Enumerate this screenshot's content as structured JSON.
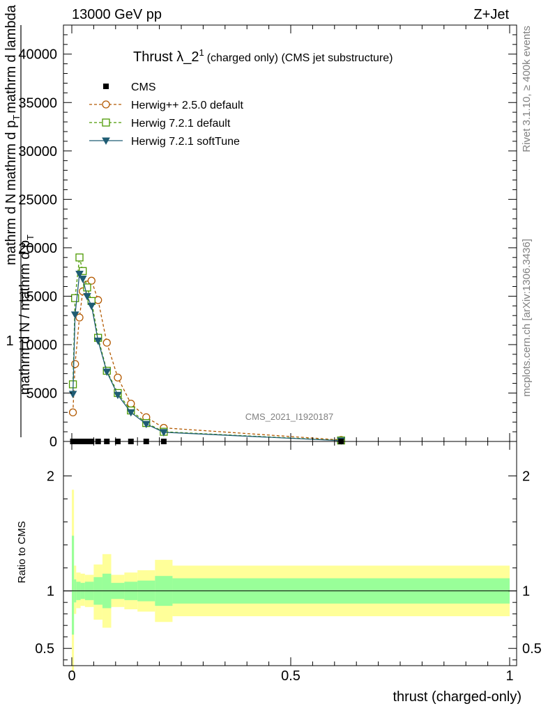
{
  "header": {
    "energy_label": "13000 GeV pp",
    "process_label": "Z+Jet"
  },
  "side_text": {
    "rivet": "Rivet 3.1.10, ≥ 400k events",
    "mcplots": "mcplots.cern.ch [arXiv:1306.3436]"
  },
  "chart_data": [
    {
      "type": "line",
      "panel": "main",
      "title_main": "Thrust λ_2",
      "title_sup": "1",
      "title_rest": "(charged only) (CMS jet substructure)",
      "watermark": "CMS_2021_I1920187",
      "ylabel_numerator_1": "mathrm d",
      "ylabel_numerator_N": "N",
      "ylabel_numerator_2": "mathrm d p",
      "ylabel_numerator_T": "T",
      "ylabel_numerator_3": "mathrm d lambda",
      "ylabel_one": "1",
      "ylabel_denominator": "mathrm d N / mathrm d p",
      "ylabel_denominator_T": "T",
      "xlim": [
        0,
        1
      ],
      "ylim": [
        0,
        43000
      ],
      "y_ticks": [
        {
          "value": 0,
          "label": "0"
        },
        {
          "value": 5000,
          "label": "5000"
        },
        {
          "value": 10000,
          "label": "10000"
        },
        {
          "value": 15000,
          "label": "15000"
        },
        {
          "value": 20000,
          "label": "20000"
        },
        {
          "value": 25000,
          "label": "25000"
        },
        {
          "value": 30000,
          "label": "30000"
        },
        {
          "value": 35000,
          "label": "35000"
        },
        {
          "value": 40000,
          "label": "40000"
        }
      ],
      "legend": [
        {
          "name": "CMS",
          "color": "#000000",
          "marker": "square-filled",
          "line": "none"
        },
        {
          "name": "Herwig++ 2.5.0 default",
          "color": "#b35900",
          "marker": "circle-open",
          "line": "dashed"
        },
        {
          "name": "Herwig 7.2.1 default",
          "color": "#4c9900",
          "marker": "square-open",
          "line": "dashed"
        },
        {
          "name": "Herwig 7.2.1 softTune",
          "color": "#1f5c73",
          "marker": "triangle-down-filled",
          "line": "solid"
        }
      ],
      "series": [
        {
          "name": "CMS",
          "x": [
            0.0025,
            0.0075,
            0.0125,
            0.0175,
            0.025,
            0.035,
            0.045,
            0.06,
            0.08,
            0.105,
            0.135,
            0.17,
            0.21,
            0.615
          ],
          "y": [
            0,
            0,
            0,
            0,
            0,
            0,
            0,
            0,
            0,
            0,
            0,
            0,
            0,
            0
          ]
        },
        {
          "name": "Herwig++ 2.5.0 default",
          "x": [
            0.0025,
            0.0075,
            0.0175,
            0.025,
            0.035,
            0.045,
            0.06,
            0.08,
            0.105,
            0.135,
            0.17,
            0.21,
            0.615
          ],
          "y": [
            3000,
            8000,
            12800,
            15500,
            16200,
            16600,
            14600,
            10200,
            6600,
            3900,
            2500,
            1400,
            150
          ]
        },
        {
          "name": "Herwig 7.2.1 default",
          "x": [
            0.0025,
            0.0075,
            0.0175,
            0.025,
            0.035,
            0.045,
            0.06,
            0.08,
            0.105,
            0.135,
            0.17,
            0.21,
            0.615
          ],
          "y": [
            5900,
            14800,
            19000,
            17600,
            15900,
            14500,
            10700,
            7300,
            5000,
            3200,
            1900,
            1000,
            100
          ]
        },
        {
          "name": "Herwig 7.2.1 softTune",
          "x": [
            0.0025,
            0.0075,
            0.0175,
            0.025,
            0.035,
            0.045,
            0.06,
            0.08,
            0.105,
            0.135,
            0.17,
            0.21,
            0.615
          ],
          "y": [
            4900,
            13100,
            17300,
            16800,
            15000,
            14000,
            10400,
            7200,
            4800,
            3000,
            1800,
            950,
            80
          ]
        }
      ]
    },
    {
      "type": "area",
      "panel": "ratio",
      "ylabel": "Ratio to CMS",
      "xlabel": "thrust (charged-only)",
      "xlim": [
        0,
        1
      ],
      "ylim": [
        0.35,
        2.3
      ],
      "y_ticks": [
        {
          "value": 0.5,
          "label": "0.5"
        },
        {
          "value": 1,
          "label": "1"
        },
        {
          "value": 2,
          "label": "2"
        }
      ],
      "x_ticks": [
        {
          "value": 0,
          "label": "0"
        },
        {
          "value": 0.5,
          "label": "0.5"
        },
        {
          "value": 1,
          "label": "1"
        }
      ],
      "reference_line": 1,
      "bins": [
        {
          "x0": 0.0,
          "x1": 0.005,
          "outer_lo": 0.3,
          "outer_hi": 1.88,
          "inner_lo": 0.62,
          "inner_hi": 1.48
        },
        {
          "x0": 0.005,
          "x1": 0.01,
          "outer_lo": 0.8,
          "outer_hi": 1.22,
          "inner_lo": 0.9,
          "inner_hi": 1.1
        },
        {
          "x0": 0.01,
          "x1": 0.02,
          "outer_lo": 0.85,
          "outer_hi": 1.16,
          "inner_lo": 0.92,
          "inner_hi": 1.08
        },
        {
          "x0": 0.02,
          "x1": 0.03,
          "outer_lo": 0.87,
          "outer_hi": 1.15,
          "inner_lo": 0.93,
          "inner_hi": 1.07
        },
        {
          "x0": 0.03,
          "x1": 0.05,
          "outer_lo": 0.86,
          "outer_hi": 1.14,
          "inner_lo": 0.92,
          "inner_hi": 1.08
        },
        {
          "x0": 0.05,
          "x1": 0.07,
          "outer_lo": 0.75,
          "outer_hi": 1.23,
          "inner_lo": 0.88,
          "inner_hi": 1.12
        },
        {
          "x0": 0.07,
          "x1": 0.09,
          "outer_lo": 0.68,
          "outer_hi": 1.32,
          "inner_lo": 0.85,
          "inner_hi": 1.15
        },
        {
          "x0": 0.09,
          "x1": 0.12,
          "outer_lo": 0.86,
          "outer_hi": 1.14,
          "inner_lo": 0.93,
          "inner_hi": 1.07
        },
        {
          "x0": 0.12,
          "x1": 0.15,
          "outer_lo": 0.84,
          "outer_hi": 1.16,
          "inner_lo": 0.92,
          "inner_hi": 1.08
        },
        {
          "x0": 0.15,
          "x1": 0.19,
          "outer_lo": 0.82,
          "outer_hi": 1.18,
          "inner_lo": 0.91,
          "inner_hi": 1.09
        },
        {
          "x0": 0.19,
          "x1": 0.23,
          "outer_lo": 0.73,
          "outer_hi": 1.27,
          "inner_lo": 0.87,
          "inner_hi": 1.13
        },
        {
          "x0": 0.23,
          "x1": 1.0,
          "outer_lo": 0.78,
          "outer_hi": 1.22,
          "inner_lo": 0.89,
          "inner_hi": 1.11
        }
      ]
    }
  ]
}
